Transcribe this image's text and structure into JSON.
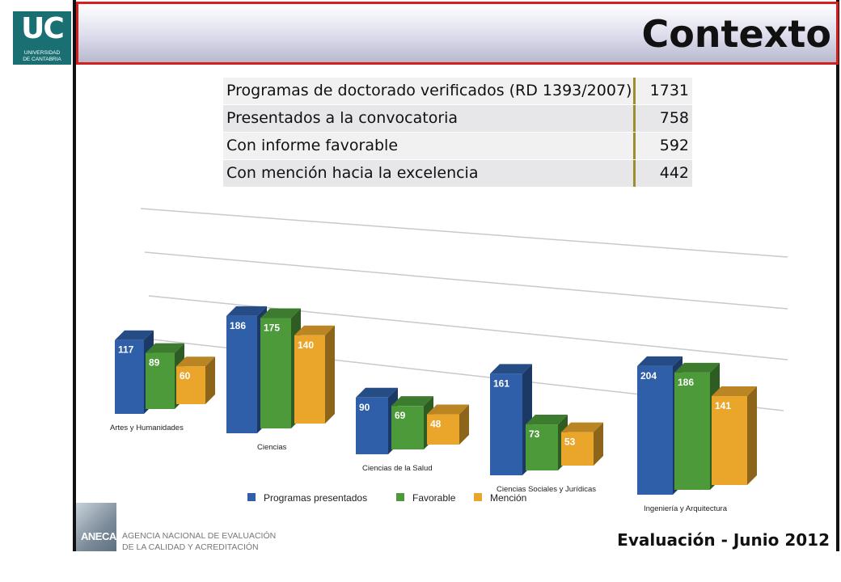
{
  "logo": {
    "mark": "UC",
    "line1": "UNIVERSIDAD",
    "line2": "DE CANTABRIA"
  },
  "title": "Contexto",
  "stats": [
    {
      "label": "Programas de doctorado verificados (RD 1393/2007)",
      "value": "1731"
    },
    {
      "label": "Presentados a la convocatoria",
      "value": "758"
    },
    {
      "label": "Con informe favorable",
      "value": "592"
    },
    {
      "label": "Con mención hacia la excelencia",
      "value": "442"
    }
  ],
  "chart_data": {
    "type": "bar",
    "categories": [
      "Artes y Humanidades",
      "Ciencias",
      "Ciencias de la Salud",
      "Ciencias Sociales y Jurídicas",
      "Ingeniería y Arquitectura"
    ],
    "series": [
      {
        "name": "Programas presentados",
        "values": [
          117,
          186,
          90,
          161,
          204
        ],
        "color": "#2f5fa8"
      },
      {
        "name": "Favorable",
        "values": [
          89,
          175,
          69,
          73,
          186
        ],
        "color": "#4c9a3a"
      },
      {
        "name": "Mención",
        "values": [
          60,
          140,
          48,
          53,
          141
        ],
        "color": "#e9a62b"
      }
    ],
    "legend_position": "bottom-left",
    "grid": true
  },
  "footer": {
    "anec": "ANECA",
    "agency_line1": "AGENCIA NACIONAL DE EVALUACIÓN",
    "agency_line2": "DE LA CALIDAD Y ACREDITACIÓN",
    "text": "Evaluación - Junio 2012"
  }
}
